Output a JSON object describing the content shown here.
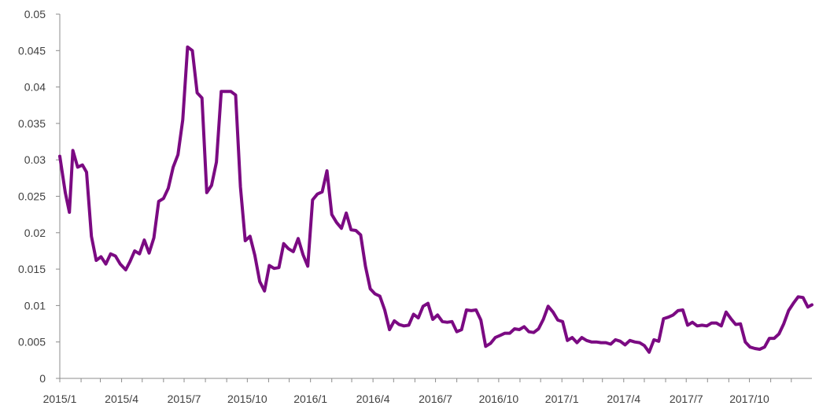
{
  "chart_data": {
    "type": "line",
    "title": "",
    "xlabel": "",
    "ylabel": "",
    "ylim": [
      0,
      0.05
    ],
    "yticks": [
      "0",
      "0.005",
      "0.01",
      "0.015",
      "0.02",
      "0.025",
      "0.03",
      "0.035",
      "0.04",
      "0.045",
      "0.05"
    ],
    "xtick_labels": [
      "2015/1",
      "2015/4",
      "2015/7",
      "2015/10",
      "2016/1",
      "2016/4",
      "2016/7",
      "2016/10",
      "2017/1",
      "2017/4",
      "2017/7",
      "2017/10"
    ],
    "xlim": [
      "2015-01-01",
      "2017-12-31"
    ],
    "grid": false,
    "legend": "none",
    "line_color": "#7B0A82",
    "series": [
      {
        "x": [
          "2015-01-01",
          "2015-01-09",
          "2015-01-15",
          "2015-01-20",
          "2015-01-27",
          "2015-02-03",
          "2015-02-09",
          "2015-02-16",
          "2015-02-23",
          "2015-03-02",
          "2015-03-09",
          "2015-03-16",
          "2015-03-23",
          "2015-03-30",
          "2015-04-07",
          "2015-04-13",
          "2015-04-20",
          "2015-04-27",
          "2015-05-04",
          "2015-05-11",
          "2015-05-18",
          "2015-05-25",
          "2015-06-01",
          "2015-06-08",
          "2015-06-15",
          "2015-06-22",
          "2015-06-29",
          "2015-07-06",
          "2015-07-13",
          "2015-07-20",
          "2015-07-27",
          "2015-08-03",
          "2015-08-10",
          "2015-08-17",
          "2015-08-24",
          "2015-08-31",
          "2015-09-07",
          "2015-09-14",
          "2015-09-21",
          "2015-09-28",
          "2015-10-05",
          "2015-10-12",
          "2015-10-19",
          "2015-10-26",
          "2015-11-02",
          "2015-11-09",
          "2015-11-16",
          "2015-11-23",
          "2015-11-30",
          "2015-12-07",
          "2015-12-14",
          "2015-12-21",
          "2015-12-28",
          "2016-01-04",
          "2016-01-11",
          "2016-01-18",
          "2016-01-25",
          "2016-02-01",
          "2016-02-08",
          "2016-02-15",
          "2016-02-22",
          "2016-02-29",
          "2016-03-07",
          "2016-03-14",
          "2016-03-21",
          "2016-03-28",
          "2016-04-04",
          "2016-04-11",
          "2016-04-18",
          "2016-04-25",
          "2016-05-02",
          "2016-05-09",
          "2016-05-16",
          "2016-05-23",
          "2016-05-30",
          "2016-06-06",
          "2016-06-13",
          "2016-06-20",
          "2016-06-27",
          "2016-07-04",
          "2016-07-11",
          "2016-07-18",
          "2016-07-25",
          "2016-08-01",
          "2016-08-08",
          "2016-08-15",
          "2016-08-22",
          "2016-08-29",
          "2016-09-05",
          "2016-09-12",
          "2016-09-19",
          "2016-09-26",
          "2016-10-03",
          "2016-10-10",
          "2016-10-17",
          "2016-10-24",
          "2016-10-31",
          "2016-11-07",
          "2016-11-14",
          "2016-11-21",
          "2016-11-28",
          "2016-12-05",
          "2016-12-12",
          "2016-12-19",
          "2016-12-26",
          "2017-01-02",
          "2017-01-09",
          "2017-01-16",
          "2017-01-23",
          "2017-01-30",
          "2017-02-06",
          "2017-02-13",
          "2017-02-20",
          "2017-02-27",
          "2017-03-06",
          "2017-03-13",
          "2017-03-20",
          "2017-03-27",
          "2017-04-03",
          "2017-04-10",
          "2017-04-17",
          "2017-04-24",
          "2017-05-01",
          "2017-05-08",
          "2017-05-15",
          "2017-05-22",
          "2017-05-29",
          "2017-06-05",
          "2017-06-12",
          "2017-06-19",
          "2017-06-26",
          "2017-07-03",
          "2017-07-10",
          "2017-07-17",
          "2017-07-24",
          "2017-07-31",
          "2017-08-07",
          "2017-08-14",
          "2017-08-21",
          "2017-08-28",
          "2017-09-04",
          "2017-09-11",
          "2017-09-18",
          "2017-09-25",
          "2017-10-02",
          "2017-10-09",
          "2017-10-16",
          "2017-10-23",
          "2017-10-30",
          "2017-11-06",
          "2017-11-13",
          "2017-11-20",
          "2017-11-27",
          "2017-12-04",
          "2017-12-11",
          "2017-12-18",
          "2017-12-25",
          "2017-12-31"
        ],
        "y": [
          0.0305,
          0.0255,
          0.0228,
          0.0313,
          0.029,
          0.0293,
          0.0283,
          0.0195,
          0.0162,
          0.0167,
          0.0157,
          0.0171,
          0.0168,
          0.0157,
          0.0149,
          0.016,
          0.0175,
          0.0171,
          0.019,
          0.0172,
          0.0193,
          0.0243,
          0.0247,
          0.0261,
          0.029,
          0.0307,
          0.0355,
          0.0455,
          0.045,
          0.0392,
          0.0385,
          0.0255,
          0.0265,
          0.0297,
          0.0394,
          0.0394,
          0.0394,
          0.0389,
          0.0263,
          0.0189,
          0.0195,
          0.0169,
          0.0133,
          0.012,
          0.0155,
          0.0151,
          0.0152,
          0.0185,
          0.0178,
          0.0174,
          0.0192,
          0.017,
          0.0154,
          0.0245,
          0.0253,
          0.0256,
          0.0285,
          0.0225,
          0.0214,
          0.0206,
          0.0227,
          0.0204,
          0.0203,
          0.0197,
          0.0154,
          0.0123,
          0.0116,
          0.0113,
          0.0094,
          0.0067,
          0.0079,
          0.0074,
          0.0072,
          0.0073,
          0.0088,
          0.0083,
          0.0099,
          0.0103,
          0.0081,
          0.0087,
          0.0078,
          0.0077,
          0.0078,
          0.0064,
          0.0067,
          0.0094,
          0.0093,
          0.0094,
          0.008,
          0.0044,
          0.0048,
          0.0056,
          0.0059,
          0.0062,
          0.0062,
          0.0068,
          0.0067,
          0.0071,
          0.0064,
          0.0063,
          0.0068,
          0.0081,
          0.0099,
          0.0091,
          0.008,
          0.0078,
          0.0052,
          0.0056,
          0.0049,
          0.0056,
          0.0052,
          0.005,
          0.005,
          0.0049,
          0.0049,
          0.0047,
          0.0053,
          0.0051,
          0.0046,
          0.0052,
          0.005,
          0.0049,
          0.0045,
          0.0036,
          0.0053,
          0.0051,
          0.0082,
          0.0084,
          0.0087,
          0.0093,
          0.0094,
          0.0073,
          0.0077,
          0.0072,
          0.0073,
          0.0072,
          0.0076,
          0.0076,
          0.0072,
          0.0091,
          0.0082,
          0.0074,
          0.0075,
          0.005,
          0.0043,
          0.0041,
          0.004,
          0.0043,
          0.0055,
          0.0055,
          0.0061,
          0.0075,
          0.0093,
          0.0103,
          0.0112,
          0.0111,
          0.0098,
          0.0101
        ]
      }
    ]
  }
}
